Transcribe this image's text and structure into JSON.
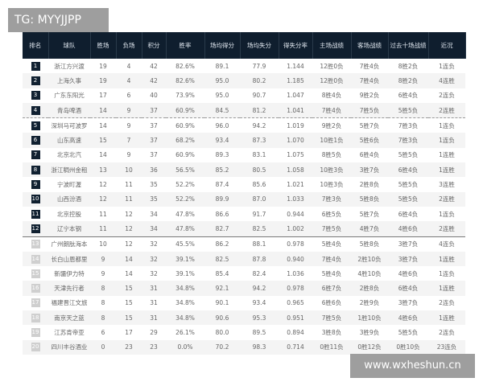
{
  "watermark_top": "TG: MYYJJPP",
  "watermark_bottom": "www.wxheshun.cn",
  "headers": [
    "排名",
    "球队",
    "胜场",
    "负场",
    "积分",
    "胜率",
    "场均得分",
    "场均失分",
    "得失分率",
    "主场战绩",
    "客场战绩",
    "过去十场战绩",
    "近况"
  ],
  "rows": [
    [
      "1",
      "浙江方兴渡",
      "19",
      "4",
      "42",
      "82.6%",
      "89.1",
      "77.9",
      "1.144",
      "12胜0负",
      "7胜4负",
      "8胜2负",
      "1连负"
    ],
    [
      "2",
      "上海久事",
      "19",
      "4",
      "42",
      "82.6%",
      "95.0",
      "80.2",
      "1.185",
      "12胜0负",
      "7胜4负",
      "8胜2负",
      "4连胜"
    ],
    [
      "3",
      "广东东阳光",
      "17",
      "6",
      "40",
      "73.9%",
      "95.0",
      "90.7",
      "1.047",
      "8胜4负",
      "9胜2负",
      "6胜4负",
      "2连负"
    ],
    [
      "4",
      "青岛啤酒",
      "14",
      "9",
      "37",
      "60.9%",
      "84.5",
      "81.2",
      "1.041",
      "7胜4负",
      "7胜5负",
      "5胜5负",
      "2连胜"
    ],
    [
      "5",
      "深圳马可波罗",
      "14",
      "9",
      "37",
      "60.9%",
      "96.0",
      "94.2",
      "1.019",
      "9胜2负",
      "5胜7负",
      "7胜3负",
      "1连负"
    ],
    [
      "6",
      "山东高速",
      "15",
      "7",
      "37",
      "68.2%",
      "93.4",
      "87.3",
      "1.070",
      "10胜1负",
      "5胜6负",
      "7胜3负",
      "1连负"
    ],
    [
      "7",
      "北京北汽",
      "14",
      "9",
      "37",
      "60.9%",
      "89.3",
      "83.1",
      "1.075",
      "8胜5负",
      "6胜4负",
      "5胜5负",
      "1连胜"
    ],
    [
      "8",
      "浙江稠州金租",
      "13",
      "10",
      "36",
      "56.5%",
      "85.2",
      "80.5",
      "1.058",
      "10胜3负",
      "3胜7负",
      "6胜4负",
      "1连胜"
    ],
    [
      "9",
      "宁波町渥",
      "12",
      "11",
      "35",
      "52.2%",
      "87.4",
      "85.6",
      "1.021",
      "10胜3负",
      "2胜8负",
      "5胜5负",
      "3连胜"
    ],
    [
      "10",
      "山西汾酒",
      "12",
      "11",
      "35",
      "52.2%",
      "89.9",
      "87.0",
      "1.033",
      "7胜3负",
      "5胜8负",
      "5胜5负",
      "2连胜"
    ],
    [
      "11",
      "北京控股",
      "11",
      "12",
      "34",
      "47.8%",
      "86.6",
      "91.7",
      "0.944",
      "6胜5负",
      "5胜7负",
      "6胜4负",
      "1连负"
    ],
    [
      "12",
      "辽宁本钢",
      "11",
      "12",
      "34",
      "47.8%",
      "82.7",
      "82.5",
      "1.002",
      "7胜5负",
      "4胜7负",
      "4胜6负",
      "2连胜"
    ],
    [
      "13",
      "广州朗肽海本",
      "10",
      "12",
      "32",
      "45.5%",
      "86.2",
      "88.1",
      "0.978",
      "5胜4负",
      "5胜8负",
      "3胜7负",
      "4连负"
    ],
    [
      "14",
      "长白山恩都里",
      "9",
      "14",
      "32",
      "39.1%",
      "82.5",
      "87.8",
      "0.940",
      "7胜4负",
      "2胜10负",
      "3胜7负",
      "1连胜"
    ],
    [
      "15",
      "新疆伊力特",
      "9",
      "14",
      "32",
      "39.1%",
      "85.4",
      "82.4",
      "1.036",
      "5胜4负",
      "4胜10负",
      "4胜6负",
      "1连负"
    ],
    [
      "16",
      "天津先行者",
      "8",
      "15",
      "31",
      "34.8%",
      "92.1",
      "94.2",
      "0.978",
      "6胜7负",
      "2胜8负",
      "6胜4负",
      "1连胜"
    ],
    [
      "17",
      "福建晋江文旅",
      "8",
      "15",
      "31",
      "34.8%",
      "90.1",
      "93.4",
      "0.965",
      "6胜6负",
      "2胜9负",
      "3胜7负",
      "2连负"
    ],
    [
      "18",
      "南京天之蓝",
      "8",
      "15",
      "31",
      "34.8%",
      "90.6",
      "95.3",
      "0.951",
      "7胜5负",
      "1胜10负",
      "4胜6负",
      "1连胜"
    ],
    [
      "19",
      "江苏肯帝亚",
      "6",
      "17",
      "29",
      "26.1%",
      "80.0",
      "89.5",
      "0.894",
      "3胜8负",
      "3胜9负",
      "5胜5负",
      "2连负"
    ],
    [
      "20",
      "四川丰谷酒业",
      "0",
      "23",
      "23",
      "0.0%",
      "70.2",
      "98.3",
      "0.714",
      "0胜11负",
      "0胜12负",
      "0胜10负",
      "23连负"
    ]
  ]
}
